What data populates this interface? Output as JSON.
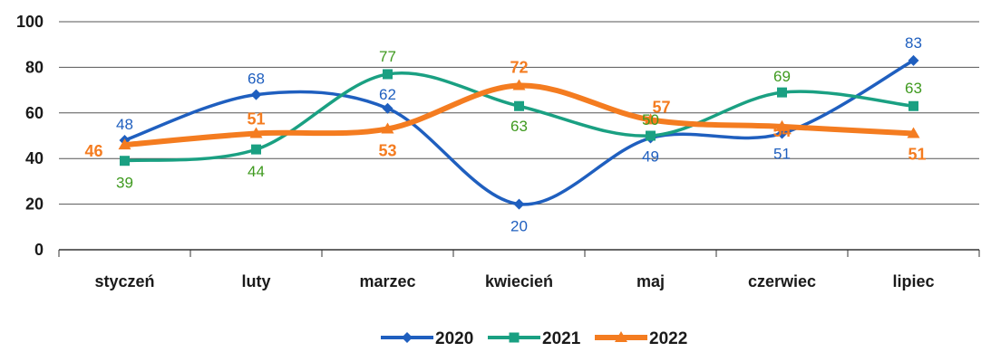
{
  "chart_data": {
    "type": "line",
    "categories": [
      "styczeń",
      "luty",
      "marzec",
      "kwiecień",
      "maj",
      "czerwiec",
      "lipiec"
    ],
    "ylim": [
      0,
      100
    ],
    "yticks": [
      0,
      20,
      40,
      60,
      80,
      100
    ],
    "grid": true,
    "legend_position": "bottom",
    "series": [
      {
        "name": "2020",
        "values": [
          48,
          68,
          62,
          20,
          49,
          51,
          83
        ],
        "color": "#1f5fbf",
        "marker": "diamond"
      },
      {
        "name": "2021",
        "values": [
          39,
          44,
          77,
          63,
          50,
          69,
          63
        ],
        "color": "#1aa082",
        "marker": "square"
      },
      {
        "name": "2022",
        "values": [
          46,
          51,
          53,
          72,
          57,
          54,
          51
        ],
        "color": "#f47c20",
        "marker": "triangle"
      }
    ],
    "label_colors": {
      "2020": "#1f5fbf",
      "2021": "#3f9a1f",
      "2022": "#f47c20"
    }
  }
}
